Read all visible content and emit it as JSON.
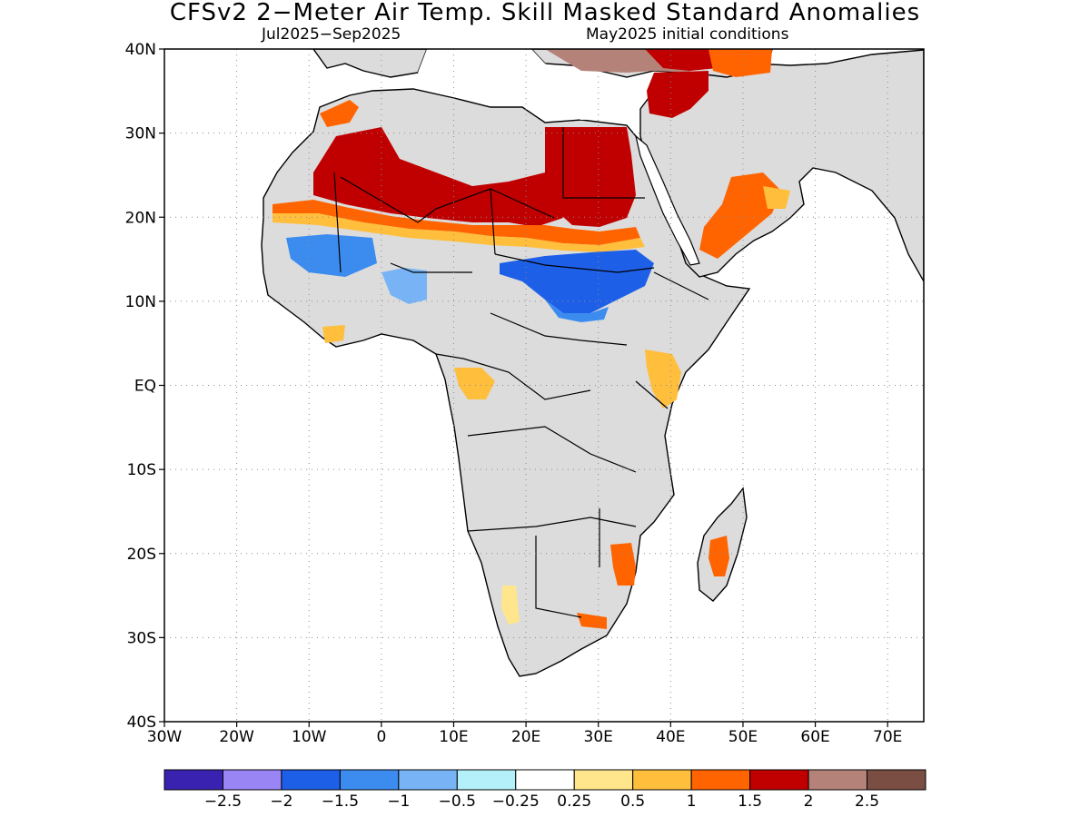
{
  "title": "CFSv2 2−Meter Air Temp. Skill Masked Standard Anomalies",
  "subtitle_left": "Jul2025−Sep2025",
  "subtitle_right": "May2025 initial conditions",
  "map": {
    "lon_range": [
      -30,
      75
    ],
    "lat_range": [
      -40,
      40
    ],
    "x_tick_labels": [
      "30W",
      "20W",
      "10W",
      "0",
      "10E",
      "20E",
      "30E",
      "40E",
      "50E",
      "60E",
      "70E"
    ],
    "y_tick_labels": [
      "40N",
      "30N",
      "20N",
      "10N",
      "EQ",
      "10S",
      "20S",
      "30S",
      "40S"
    ],
    "grid": true,
    "land_color": "#dcdcdc",
    "ocean_color": "#ffffff"
  },
  "colorbar": {
    "colors": [
      "#3a22b0",
      "#9a85f5",
      "#1e5fe8",
      "#3c8cf0",
      "#78b4f5",
      "#b4f0fa",
      "#ffffff",
      "#ffe68c",
      "#ffbe3c",
      "#ff6400",
      "#c00000",
      "#b48278",
      "#7a4e42"
    ],
    "labels": [
      "−2.5",
      "−2",
      "−1.5",
      "−1",
      "−0.5",
      "−0.25",
      "0.25",
      "0.5",
      "1",
      "1.5",
      "2",
      "2.5"
    ]
  },
  "anomaly_regions": [
    {
      "name": "sahara-west",
      "value": 2.0,
      "color": "#c00000"
    },
    {
      "name": "sahara-central",
      "value": 2.0,
      "color": "#c00000"
    },
    {
      "name": "egypt-libya",
      "value": 2.0,
      "color": "#c00000"
    },
    {
      "name": "mediterranean-east",
      "value": 2.5,
      "color": "#b48278"
    },
    {
      "name": "sahel-west",
      "value": -1.0,
      "color": "#3c8cf0"
    },
    {
      "name": "sudan-chad",
      "value": -1.5,
      "color": "#1e5fe8"
    },
    {
      "name": "arabia",
      "value": 1.5,
      "color": "#ff6400"
    },
    {
      "name": "kenya",
      "value": 1.0,
      "color": "#ffbe3c"
    },
    {
      "name": "gabon",
      "value": 1.0,
      "color": "#ffbe3c"
    },
    {
      "name": "mozambique",
      "value": 1.5,
      "color": "#ff6400"
    },
    {
      "name": "madagascar",
      "value": 1.5,
      "color": "#ff6400"
    },
    {
      "name": "namibia-coast",
      "value": 0.5,
      "color": "#ffe68c"
    }
  ]
}
